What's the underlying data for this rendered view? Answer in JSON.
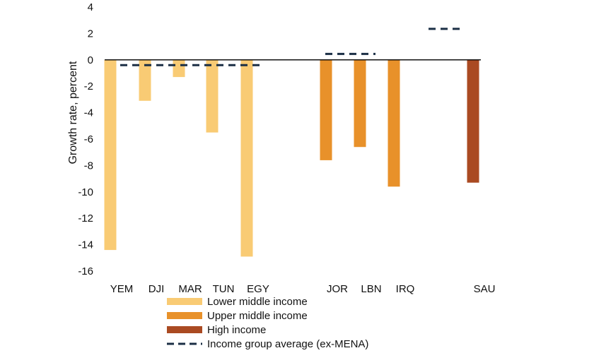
{
  "chart_data": {
    "type": "bar",
    "title": "",
    "xlabel": "",
    "ylabel": "Growth rate, percent",
    "ylim": [
      -16,
      4
    ],
    "yticks": [
      4,
      2,
      0,
      -2,
      -4,
      -6,
      -8,
      -10,
      -12,
      -14,
      -16
    ],
    "grid": false,
    "legend_position": "bottom",
    "groups": [
      {
        "name": "Lower middle income",
        "color": "#F9CB74",
        "categories": [
          "YEM",
          "DJI",
          "MAR",
          "TUN",
          "EGY"
        ],
        "values": [
          -14.4,
          -3.1,
          -1.3,
          -5.5,
          -14.9
        ],
        "average": -0.4
      },
      {
        "name": "Upper middle income",
        "color": "#E8912A",
        "categories": [
          "JOR",
          "LBN",
          "IRQ"
        ],
        "values": [
          -7.6,
          -6.6,
          -9.6
        ],
        "average": 0.45
      },
      {
        "name": "High income",
        "color": "#AA4A22",
        "categories": [
          "SAU"
        ],
        "values": [
          -9.3
        ],
        "average": 2.35
      }
    ],
    "legend": [
      {
        "label": "Lower middle income",
        "kind": "bar",
        "color": "#F9CB74"
      },
      {
        "label": "Upper middle income",
        "kind": "bar",
        "color": "#E8912A"
      },
      {
        "label": "High income",
        "kind": "bar",
        "color": "#AA4A22"
      },
      {
        "label": "Income group average (ex-MENA)",
        "kind": "dash",
        "color": "#1B2F45"
      }
    ]
  }
}
